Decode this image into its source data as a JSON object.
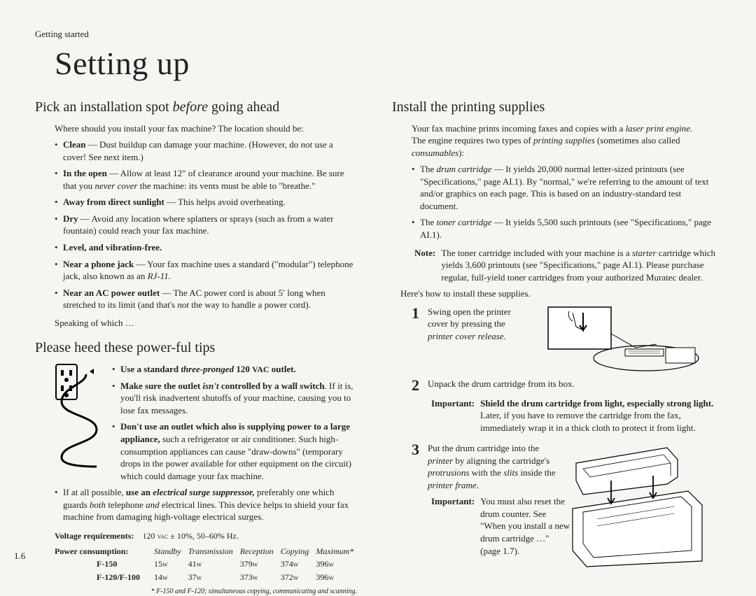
{
  "header": {
    "breadcrumb": "Getting started",
    "title": "Setting up"
  },
  "left": {
    "section1_heading": "Pick an installation spot ",
    "section1_heading_italic": "before",
    "section1_heading_end": " going ahead",
    "intro": "Where should you install your fax machine? The location should be:",
    "bullets": [
      {
        "lead": "Clean",
        "text": " — Dust buildup can damage your machine. (However, do ",
        "italic1": "not",
        "text2": " use a cover! See next item.)"
      },
      {
        "lead": "In the open",
        "text": " — Allow at least 12″ of clearance around your machine. Be sure that you ",
        "italic1": "never cover",
        "text2": " the machine: its vents must be able to \"breathe.\""
      },
      {
        "lead": "Away from direct sunlight",
        "text": " — This helps avoid overheating."
      },
      {
        "lead": "Dry",
        "text": " — Avoid any location where splatters or sprays (such as from a water fountain) could reach your fax machine."
      },
      {
        "lead": "Level, and vibration-free."
      },
      {
        "lead": "Near a phone jack",
        "text": " — Your fax machine uses a standard (\"modular\") telephone jack, also known as an ",
        "italic1": "RJ-11.",
        "text2": ""
      },
      {
        "lead": "Near an AC power outlet",
        "text": " — The AC power cord is about 5′ long when stretched to its limit (and that's ",
        "italic1": "not",
        "text2": " the way to handle a power cord)."
      }
    ],
    "speaking": "Speaking of which …",
    "section2_heading": "Please heed these power-ful tips",
    "power_bullets": [
      {
        "html": "<span class='bold'>Use a standard <span class='italic'>three-pronged</span> 120 <span class='small-caps'>VAC</span> outlet.</span>"
      },
      {
        "html": "<span class='bold'>Make sure the outlet <span class='italic'>isn't</span> controlled by a wall switch</span>. If it is, you'll risk inadvertent shutoffs of your machine, causing you to lose fax messages."
      },
      {
        "html": "<span class='bold'>Don't use an outlet which also is supplying power to a large appliance,</span> such a refrigerator or air conditioner. Such high-consumption appliances can cause \"draw-downs\" (temporary drops in the power available for other equipment on the circuit) which could damage your fax machine."
      }
    ],
    "power_footer": "If at all possible, <span class='bold'>use an <span class='italic'>electrical surge suppressor,</span></span> preferably one which guards <span class='italic'>both</span> telephone <span class='italic'>and</span> electrical lines. This device helps to shield your fax machine from damaging high-voltage electrical surges.",
    "voltage_label": "Voltage requirements:",
    "voltage_value": "120 VAC ± 10%, 50–60% Hz.",
    "consumption_label": "Power consumption:",
    "table": {
      "headers": [
        "",
        "Standby",
        "Transmission",
        "Reception",
        "Copying",
        "Maximum*"
      ],
      "rows": [
        [
          "F-150",
          "15W",
          "41W",
          "379W",
          "374W",
          "396W"
        ],
        [
          "F-120/F-100",
          "14W",
          "37W",
          "373W",
          "372W",
          "396W"
        ]
      ]
    },
    "footnote": "* F-150 and F-120; simultaneous copying, communicating and scanning."
  },
  "right": {
    "heading": "Install the printing supplies",
    "intro": "Your fax machine prints incoming faxes and copies with a <span class='italic'>laser print engine.</span> The engine requires two types of <span class='italic'>printing supplies</span> (sometimes also called <span class='italic'>consumables</span>):",
    "bullets": [
      "The <span class='italic'>drum cartridge</span> — It yields 20,000 normal letter-sized printouts (see \"Specifications,\" page AI.1). By \"normal,\" we're referring to the amount of text and/or graphics on each page. This is based on an industry-standard test document.",
      "The <span class='italic'>toner cartridge</span> — It yields 5,500 such printouts (see \"Specifications,\" page AI.1)."
    ],
    "note_label": "Note:",
    "note_text": "The toner cartridge included with your machine is a <span class='italic'>starter</span> cartridge which yields 3,600 printouts (see \"Specifications,\" page AI.1). Please purchase regular, full-yield toner cartridges from your authorized Muratec dealer.",
    "heres_how": "Here's how to install these supplies.",
    "step1_text": "Swing open the printer cover by pressing the <span class='italic'>printer cover release.</span>",
    "step2_text": "Unpack the drum cartridge from its box.",
    "step2_important_label": "Important:",
    "step2_important_text": "<span class='bold'>Shield the drum cartridge from light, especially strong light.</span> Later, if you have to remove the cartridge from the fax, immediately wrap it in a thick cloth to protect it from light.",
    "step3_text": "Put the drum cartridge into the <span class='italic'>printer</span> by aligning the cartridge's <span class='italic'>protrusions</span> with the <span class='italic'>slits</span> inside the <span class='italic'>printer frame.</span>",
    "step3_important_label": "Important:",
    "step3_important_text": "You must also reset the drum counter. See \"When you install a new drum cartridge …\" (page 1.7).",
    "page_number": "1.6"
  },
  "colors": {
    "text": "#222222",
    "background": "#f5f5f2"
  }
}
